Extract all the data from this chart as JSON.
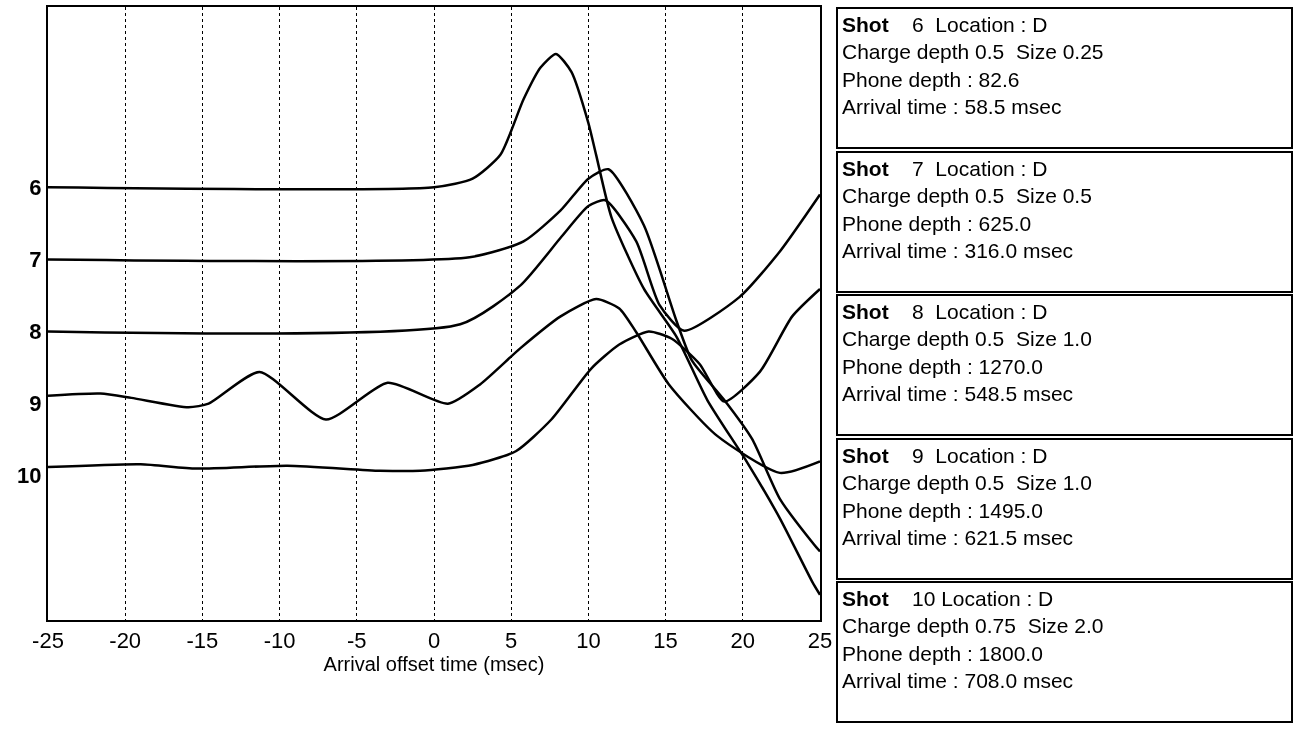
{
  "chart_data": {
    "type": "line",
    "xlabel": "Arrival offset time (msec)",
    "xlim": [
      -25,
      25
    ],
    "xticks": [
      -25,
      -20,
      -15,
      -10,
      -5,
      0,
      5,
      10,
      15,
      20,
      25
    ],
    "ylim": [
      12,
      3.5
    ],
    "yticks": [
      6,
      7,
      8,
      9,
      10
    ],
    "grid": "x",
    "marker": "none",
    "line_style": "solid",
    "series": [
      {
        "color": "#000000",
        "x": [
          -25,
          0,
          2.5,
          4.3,
          5.8,
          6.9,
          7.9,
          8.9,
          10.0,
          10.5,
          11.5,
          13.6,
          15.7,
          17.7,
          20.3,
          22.4,
          24.5,
          25
        ],
        "values": [
          6.0,
          6.0,
          5.88,
          5.55,
          4.78,
          4.34,
          4.15,
          4.4,
          5.11,
          5.55,
          6.42,
          7.41,
          8.07,
          8.95,
          9.82,
          10.59,
          11.47,
          11.65
        ]
      },
      {
        "color": "#000000",
        "x": [
          -25,
          2.3,
          5.8,
          8.2,
          10.0,
          11.3,
          13.6,
          15.7,
          16.7,
          18.8,
          20.6,
          22.4,
          24.6,
          25
        ],
        "values": [
          7.0,
          6.97,
          6.75,
          6.32,
          5.88,
          5.75,
          6.53,
          7.85,
          8.4,
          8.95,
          9.49,
          10.32,
          10.95,
          11.05
        ]
      },
      {
        "color": "#000000",
        "x": [
          -25,
          1.7,
          5.6,
          8.2,
          10.0,
          11.1,
          13.1,
          14.6,
          16.2,
          19.8,
          22.4,
          25
        ],
        "values": [
          8.0,
          7.9,
          7.36,
          6.7,
          6.26,
          6.18,
          6.75,
          7.63,
          7.99,
          7.52,
          6.89,
          6.1
        ]
      },
      {
        "color": "#000000",
        "x": [
          -25,
          -21.6,
          -19.6,
          -15.9,
          -14.6,
          -11.3,
          -7.0,
          -3.0,
          0.9,
          3.0,
          5.6,
          8.2,
          10.5,
          12.0,
          13.1,
          15.2,
          18.3,
          22.4,
          25
        ],
        "values": [
          8.89,
          8.86,
          8.92,
          9.05,
          9.0,
          8.56,
          9.22,
          8.71,
          9.0,
          8.73,
          8.23,
          7.79,
          7.55,
          7.68,
          8.01,
          8.73,
          9.44,
          9.96,
          9.8
        ]
      },
      {
        "color": "#000000",
        "x": [
          -25,
          -19.0,
          -15.4,
          -9.5,
          -3.5,
          -0.9,
          2.5,
          5.3,
          7.6,
          10.2,
          12.0,
          13.9,
          15.4,
          17.2,
          18.8,
          21.1,
          23.2,
          25
        ],
        "values": [
          9.88,
          9.84,
          9.9,
          9.86,
          9.93,
          9.93,
          9.85,
          9.66,
          9.22,
          8.51,
          8.18,
          8.0,
          8.1,
          8.45,
          8.97,
          8.56,
          7.79,
          7.41
        ]
      }
    ],
    "annotations": [
      "Shot    6  Location : D\nCharge depth 0.5  Size 0.25\nPhone depth : 82.6\nArrival time : 58.5 msec",
      "Shot    7  Location : D\nCharge depth 0.5  Size 0.5\nPhone depth : 625.0\nArrival time : 316.0 msec",
      "Shot    8  Location : D\nCharge depth 0.5  Size 1.0\nPhone depth : 1270.0\nArrival time : 548.5 msec",
      "Shot    9  Location : D\nCharge depth 0.5  Size 1.0\nPhone depth : 1495.0\nArrival time : 621.5 msec",
      "Shot    10 Location : D\nCharge depth 0.75  Size 2.0\nPhone depth : 1800.0\nArrival time : 708.0 msec"
    ]
  }
}
